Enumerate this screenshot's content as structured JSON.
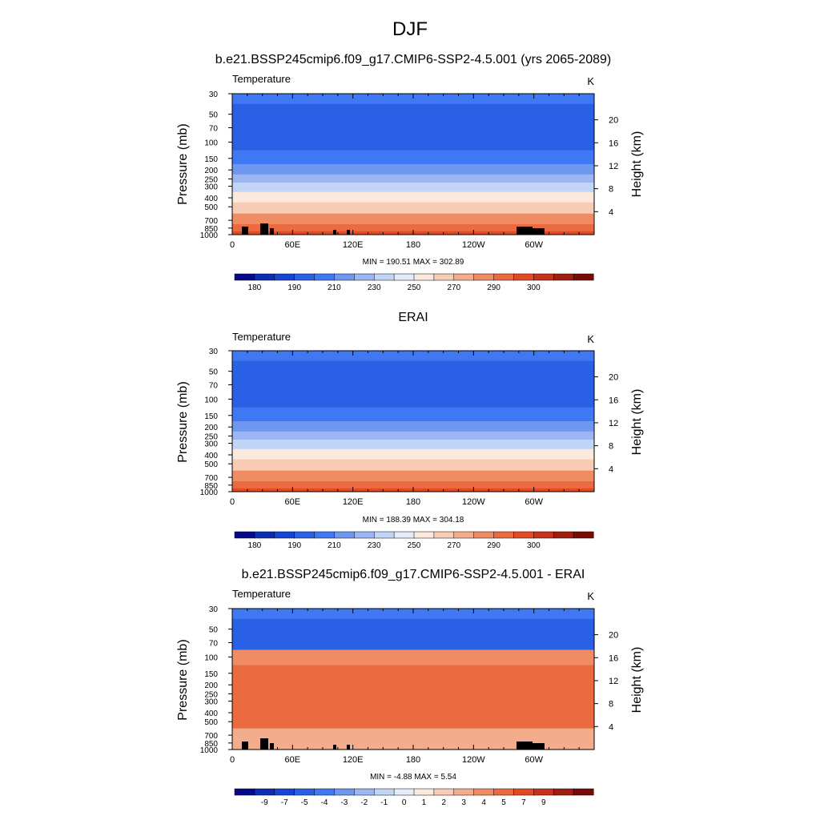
{
  "figure": {
    "title": "DJF"
  },
  "colors": {
    "temperature_palette": [
      "#08088c",
      "#0a2db4",
      "#1545d2",
      "#2960e6",
      "#3f78f2",
      "#6f97f0",
      "#9bb6f2",
      "#c3d5f6",
      "#e4ecfa",
      "#fbe9dd",
      "#f8ccb4",
      "#f4ad8c",
      "#f08c64",
      "#ec6a3f",
      "#e44a22",
      "#c8311a",
      "#a01d10",
      "#7a0a06"
    ],
    "difference_palette": [
      "#08088c",
      "#0a2db4",
      "#1545d2",
      "#2960e6",
      "#3f78f2",
      "#6f97f0",
      "#9bb6f2",
      "#c3d5f6",
      "#e4ecfa",
      "#fbe9dd",
      "#f8ccb4",
      "#f4ad8c",
      "#f08c64",
      "#ec6a3f",
      "#e44a22",
      "#c8311a",
      "#a01d10",
      "#7a0a06"
    ],
    "terrain": "#000000"
  },
  "chart_data": [
    {
      "type": "heatmap",
      "title": "b.e21.BSSP245cmip6.f09_g17.CMIP6-SSP2-4.5.001 (yrs 2065-2089)",
      "variable": "Temperature",
      "units": "K",
      "ylabel": "Pressure (mb)",
      "ylabel_right": "Height (km)",
      "x_ticks": [
        "0",
        "60E",
        "120E",
        "180",
        "120W",
        "60W"
      ],
      "y_ticks": [
        "30",
        "50",
        "70",
        "100",
        "150",
        "200",
        "250",
        "300",
        "400",
        "500",
        "700",
        "850",
        "1000"
      ],
      "y_ticks_right": [
        "20",
        "16",
        "12",
        "8",
        "4"
      ],
      "stats": "MIN = 190.51  MAX = 302.89",
      "colorbar_labels": [
        "180",
        "190",
        "210",
        "230",
        "250",
        "270",
        "290",
        "300"
      ],
      "profile_levels": [
        30,
        50,
        70,
        100,
        150,
        200,
        250,
        300,
        400,
        500,
        700,
        850,
        1000
      ],
      "profile_class": [
        4,
        3,
        3,
        3,
        4,
        5,
        6,
        7,
        9,
        10,
        12,
        13,
        14
      ],
      "terrain": true
    },
    {
      "type": "heatmap",
      "title": "ERAI",
      "variable": "Temperature",
      "units": "K",
      "ylabel": "Pressure (mb)",
      "ylabel_right": "Height (km)",
      "x_ticks": [
        "0",
        "60E",
        "120E",
        "180",
        "120W",
        "60W"
      ],
      "y_ticks": [
        "30",
        "50",
        "70",
        "100",
        "150",
        "200",
        "250",
        "300",
        "400",
        "500",
        "700",
        "850",
        "1000"
      ],
      "y_ticks_right": [
        "20",
        "16",
        "12",
        "8",
        "4"
      ],
      "stats": "MIN = 188.39  MAX = 304.18",
      "colorbar_labels": [
        "180",
        "190",
        "210",
        "230",
        "250",
        "270",
        "290",
        "300"
      ],
      "profile_levels": [
        30,
        50,
        70,
        100,
        150,
        200,
        250,
        300,
        400,
        500,
        700,
        850,
        1000
      ],
      "profile_class": [
        4,
        3,
        3,
        3,
        4,
        5,
        6,
        7,
        9,
        10,
        12,
        13,
        14
      ],
      "terrain": false
    },
    {
      "type": "heatmap",
      "title": "b.e21.BSSP245cmip6.f09_g17.CMIP6-SSP2-4.5.001 - ERAI",
      "variable": "Temperature",
      "units": "K",
      "ylabel": "Pressure (mb)",
      "ylabel_right": "Height (km)",
      "x_ticks": [
        "0",
        "60E",
        "120E",
        "180",
        "120W",
        "60W"
      ],
      "y_ticks": [
        "30",
        "50",
        "70",
        "100",
        "150",
        "200",
        "250",
        "300",
        "400",
        "500",
        "700",
        "850",
        "1000"
      ],
      "y_ticks_right": [
        "20",
        "16",
        "12",
        "8",
        "4"
      ],
      "stats": "MIN = -4.88  MAX =   5.54",
      "colorbar_labels": [
        "-9",
        "-7",
        "-5",
        "-4",
        "-3",
        "-2",
        "-1",
        "0",
        "1",
        "2",
        "3",
        "4",
        "5",
        "7",
        "9"
      ],
      "profile_levels": [
        30,
        50,
        70,
        100,
        150,
        200,
        250,
        300,
        400,
        500,
        700,
        850,
        1000
      ],
      "profile_class": [
        4,
        3,
        3,
        12,
        13,
        13,
        13,
        13,
        13,
        13,
        11,
        11,
        11
      ],
      "terrain": true
    }
  ]
}
